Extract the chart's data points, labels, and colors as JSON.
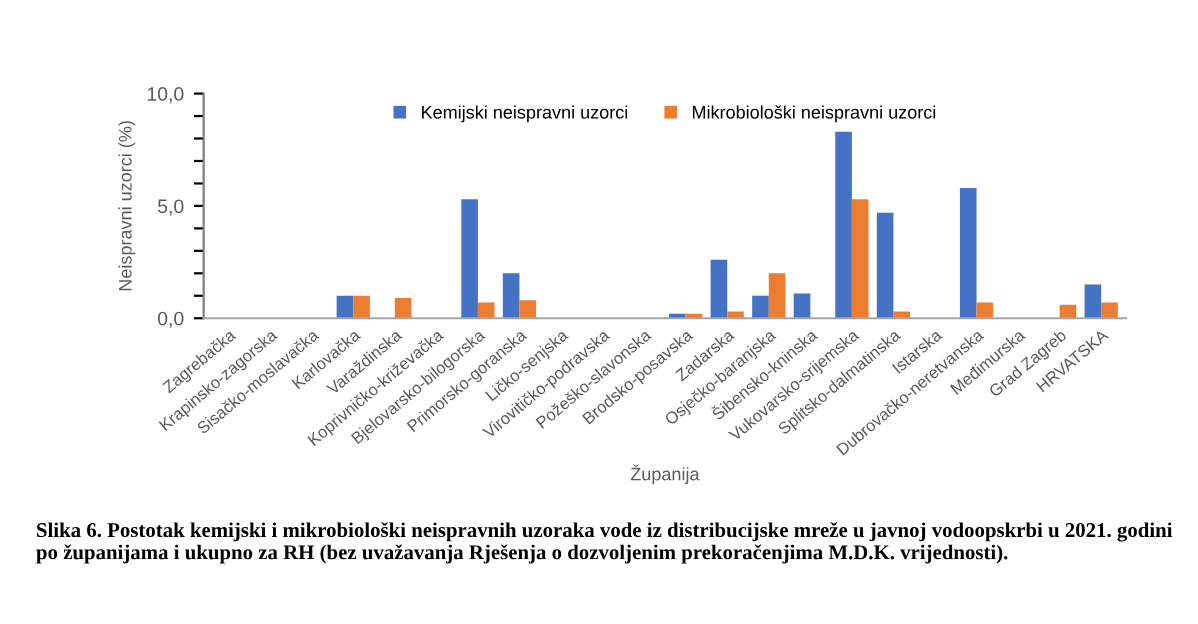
{
  "chart_data": {
    "type": "bar",
    "xlabel": "Županija",
    "ylabel": "Neispravni uzorci (%)",
    "categories": [
      "Zagrebačka",
      "Krapinsko-zagorska",
      "Sisačko-moslavačka",
      "Karlovačka",
      "Varaždinska",
      "Koprivničko-križevačka",
      "Bjelovarsko-bilogorska",
      "Primorsko-goranska",
      "Ličko-senjska",
      "Virovitičko-podravska",
      "Požeško-slavonska",
      "Brodsko-posavska",
      "Zadarska",
      "Osječko-baranjska",
      "Šibensko-kninska",
      "Vukovarsko-srijemska",
      "Splitsko-dalmatinska",
      "Istarska",
      "Dubrovačko-neretvanska",
      "Međimurska",
      "Grad Zagreb",
      "HRVATSKA"
    ],
    "series": [
      {
        "name": "Kemijski neispravni uzorci",
        "color": "#4472c4",
        "values": [
          0,
          0,
          0,
          1.0,
          0,
          0,
          5.3,
          2.0,
          0,
          0,
          0,
          0.2,
          2.6,
          1.0,
          1.1,
          8.3,
          4.7,
          0,
          5.8,
          0,
          0,
          1.5
        ]
      },
      {
        "name": "Mikrobiološki neispravni uzorci",
        "color": "#ed7d31",
        "values": [
          0,
          0,
          0,
          1.0,
          0.9,
          0,
          0.7,
          0.8,
          0,
          0,
          0,
          0.2,
          0.3,
          2.0,
          0,
          5.3,
          0.3,
          0,
          0.7,
          0,
          0.6,
          0.7
        ]
      }
    ],
    "ylim": [
      0,
      10
    ],
    "yticks": [
      {
        "value": 0,
        "label": "0,0"
      },
      {
        "value": 1,
        "label": null
      },
      {
        "value": 2,
        "label": null
      },
      {
        "value": 3,
        "label": null
      },
      {
        "value": 4,
        "label": null
      },
      {
        "value": 5,
        "label": "5,0"
      },
      {
        "value": 6,
        "label": null
      },
      {
        "value": 7,
        "label": null
      },
      {
        "value": 8,
        "label": null
      },
      {
        "value": 9,
        "label": null
      },
      {
        "value": 10,
        "label": "10,0"
      }
    ],
    "legend": "top",
    "grid": false,
    "annotations": [
      "Slika 6. Postotak kemijski i mikrobiološki neispravnih uzoraka vode iz distribucijske mreže u javnoj vodoopskrbi u 2021. godini po županijama i ukupno za RH (bez uvažavanja Rješenja o dozvoljenim prekoračenjima M.D.K. vrijednosti)."
    ]
  }
}
